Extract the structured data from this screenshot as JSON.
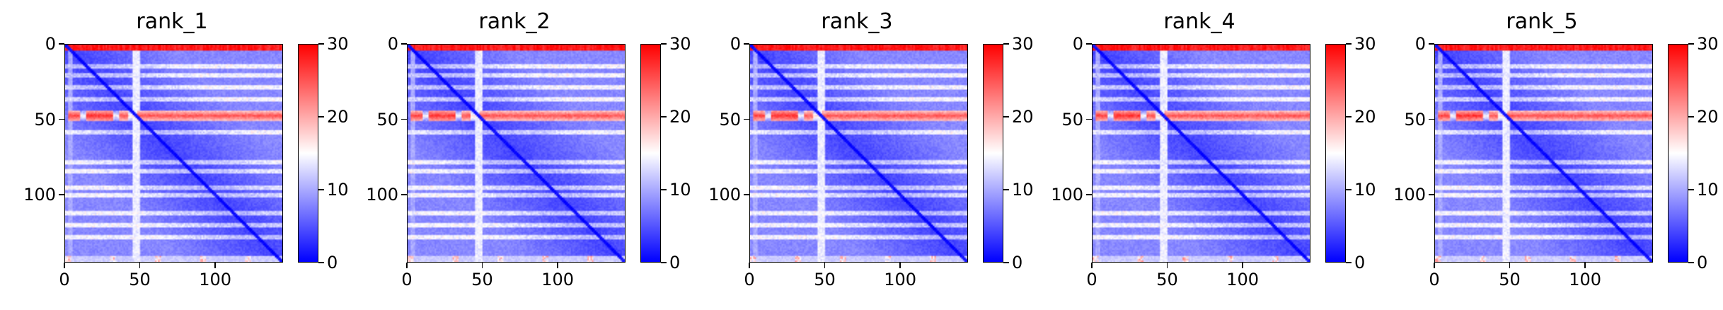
{
  "colors": {
    "low": "#0000ff",
    "mid": "#ffffff",
    "high": "#ff0000"
  },
  "chart_data": [
    {
      "type": "heatmap",
      "title": "rank_1",
      "x_range": [
        0,
        145
      ],
      "y_range": [
        0,
        145
      ],
      "y_inverted": true,
      "x_ticks": [
        "0",
        "50",
        "100"
      ],
      "y_ticks": [
        "0",
        "50",
        "100"
      ],
      "colorbar": {
        "range": [
          0,
          30
        ],
        "ticks": [
          "0",
          "10",
          "20",
          "30"
        ],
        "colormap": "bwr"
      },
      "grid": false
    },
    {
      "type": "heatmap",
      "title": "rank_2",
      "x_range": [
        0,
        145
      ],
      "y_range": [
        0,
        145
      ],
      "y_inverted": true,
      "x_ticks": [
        "0",
        "50",
        "100"
      ],
      "y_ticks": [
        "0",
        "50",
        "100"
      ],
      "colorbar": {
        "range": [
          0,
          30
        ],
        "ticks": [
          "0",
          "10",
          "20",
          "30"
        ],
        "colormap": "bwr"
      },
      "grid": false
    },
    {
      "type": "heatmap",
      "title": "rank_3",
      "x_range": [
        0,
        145
      ],
      "y_range": [
        0,
        145
      ],
      "y_inverted": true,
      "x_ticks": [
        "0",
        "50",
        "100"
      ],
      "y_ticks": [
        "0",
        "50",
        "100"
      ],
      "colorbar": {
        "range": [
          0,
          30
        ],
        "ticks": [
          "0",
          "10",
          "20",
          "30"
        ],
        "colormap": "bwr"
      },
      "grid": false
    },
    {
      "type": "heatmap",
      "title": "rank_4",
      "x_range": [
        0,
        145
      ],
      "y_range": [
        0,
        145
      ],
      "y_inverted": true,
      "x_ticks": [
        "0",
        "50",
        "100"
      ],
      "y_ticks": [
        "0",
        "50",
        "100"
      ],
      "colorbar": {
        "range": [
          0,
          30
        ],
        "ticks": [
          "0",
          "10",
          "20",
          "30"
        ],
        "colormap": "bwr"
      },
      "grid": false
    },
    {
      "type": "heatmap",
      "title": "rank_5",
      "x_range": [
        0,
        145
      ],
      "y_range": [
        0,
        145
      ],
      "y_inverted": true,
      "x_ticks": [
        "0",
        "50",
        "100"
      ],
      "y_ticks": [
        "0",
        "50",
        "100"
      ],
      "colorbar": {
        "range": [
          0,
          30
        ],
        "ticks": [
          "0",
          "10",
          "20",
          "30"
        ],
        "colormap": "bwr"
      },
      "grid": false
    }
  ]
}
